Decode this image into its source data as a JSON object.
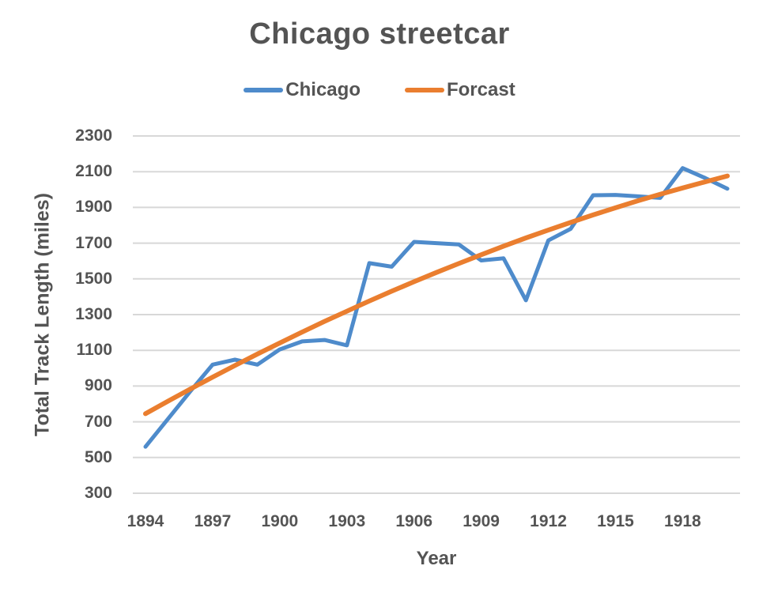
{
  "chart_data": {
    "type": "line",
    "title": "Chicago streetcar",
    "xlabel": "Year",
    "ylabel": "Total Track Length (miles)",
    "x": [
      1894,
      1895,
      1896,
      1897,
      1898,
      1899,
      1900,
      1901,
      1902,
      1903,
      1904,
      1905,
      1906,
      1907,
      1908,
      1909,
      1910,
      1911,
      1912,
      1913,
      1914,
      1915,
      1916,
      1917,
      1918,
      1919,
      1920
    ],
    "series": [
      {
        "name": "Chicago",
        "color": "#4E8BCB",
        "values": [
          560,
          715,
          870,
          1020,
          1048,
          1020,
          1105,
          1150,
          1158,
          1128,
          1588,
          1568,
          1707,
          1700,
          1693,
          1603,
          1615,
          1380,
          1715,
          1780,
          1968,
          1970,
          1962,
          1953,
          2120,
          2065,
          2005
        ]
      },
      {
        "name": "Forcast",
        "color": "#EA7E2F",
        "values": [
          745,
          815,
          883,
          950,
          1015,
          1079,
          1141,
          1202,
          1262,
          1319,
          1376,
          1431,
          1484,
          1536,
          1586,
          1635,
          1683,
          1729,
          1773,
          1816,
          1858,
          1898,
          1937,
          1974,
          2009,
          2043,
          2076
        ]
      }
    ],
    "x_ticks": [
      1894,
      1897,
      1900,
      1903,
      1906,
      1909,
      1912,
      1915,
      1918
    ],
    "y_ticks": [
      300,
      500,
      700,
      900,
      1100,
      1300,
      1500,
      1700,
      1900,
      2100,
      2300
    ],
    "ylim": [
      300,
      2300
    ],
    "grid": true,
    "legend_position": "top"
  },
  "style": {
    "text_color": "#545454",
    "grid_color": "#D8D8D8",
    "background": "#FFFFFF"
  }
}
